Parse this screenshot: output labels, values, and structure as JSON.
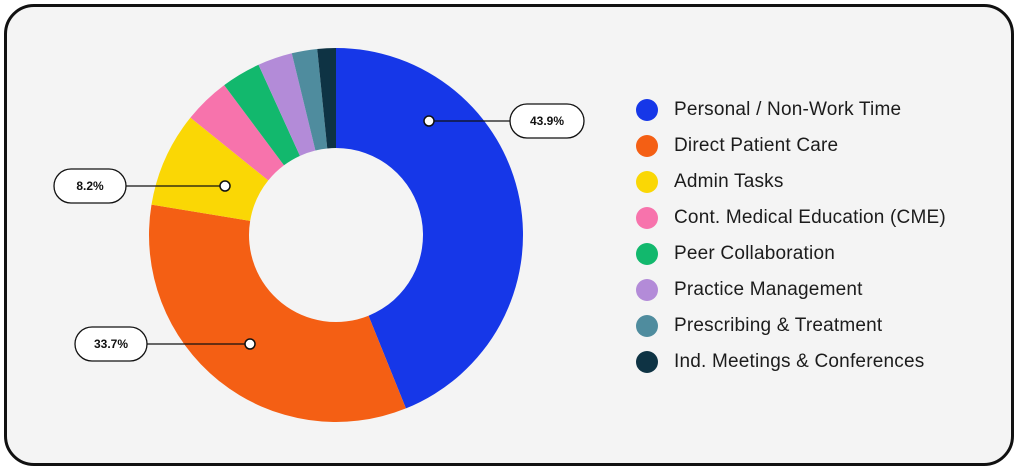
{
  "chart_data": {
    "type": "pie",
    "donut": true,
    "categories": [
      "Personal / Non-Work Time",
      "Direct Patient Care",
      "Admin Tasks",
      "Cont. Medical Education (CME)",
      "Peer Collaboration",
      "Practice Management",
      "Prescribing & Treatment",
      "Ind. Meetings & Conferences"
    ],
    "values": [
      43.9,
      33.7,
      8.2,
      4.0,
      3.4,
      3.0,
      2.2,
      1.6
    ],
    "colors": [
      "#1637e8",
      "#f45f14",
      "#fad705",
      "#f773ac",
      "#12b86d",
      "#b38bd8",
      "#4f8c9e",
      "#0e3344"
    ],
    "data_labels": [
      {
        "category": "Personal / Non-Work Time",
        "text": "43.9%"
      },
      {
        "category": "Direct Patient Care",
        "text": "33.7%"
      },
      {
        "category": "Admin Tasks",
        "text": "8.2%"
      }
    ],
    "legend_position": "right"
  }
}
